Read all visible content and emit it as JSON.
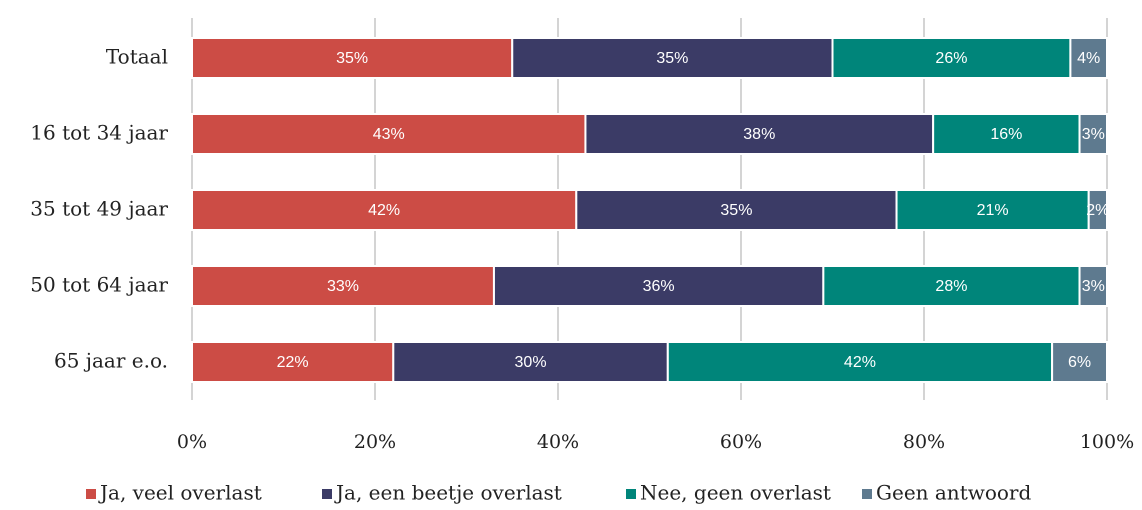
{
  "chart_data": {
    "type": "stacked-barh",
    "categories": [
      "Totaal",
      "16 tot 34 jaar",
      "35 tot 49 jaar",
      "50 tot 64 jaar",
      "65 jaar e.o."
    ],
    "series": [
      {
        "name": "Ja, veel overlast",
        "color": "#cc4c45",
        "values": [
          35,
          43,
          42,
          33,
          22
        ],
        "value_labels": [
          "35%",
          "43%",
          "42%",
          "33%",
          "22%"
        ]
      },
      {
        "name": "Ja, een beetje overlast",
        "color": "#3b3b66",
        "values": [
          35,
          38,
          35,
          36,
          30
        ],
        "value_labels": [
          "35%",
          "38%",
          "35%",
          "36%",
          "30%"
        ]
      },
      {
        "name": "Nee, geen overlast",
        "color": "#00857a",
        "values": [
          26,
          16,
          21,
          28,
          42
        ],
        "value_labels": [
          "26%",
          "16%",
          "21%",
          "28%",
          "42%"
        ]
      },
      {
        "name": "Geen antwoord",
        "color": "#5e7a8f",
        "values": [
          4,
          3,
          2,
          3,
          6
        ],
        "value_labels": [
          "4%",
          "3%",
          "2%",
          "3%",
          "6%"
        ]
      }
    ],
    "xlim": [
      0,
      100
    ],
    "xticks": [
      {
        "value": 0,
        "label": "0%"
      },
      {
        "value": 20,
        "label": "20%"
      },
      {
        "value": 40,
        "label": "40%"
      },
      {
        "value": 60,
        "label": "60%"
      },
      {
        "value": 80,
        "label": "80%"
      },
      {
        "value": 100,
        "label": "100%"
      }
    ],
    "grid": true,
    "legend": "bottom"
  }
}
